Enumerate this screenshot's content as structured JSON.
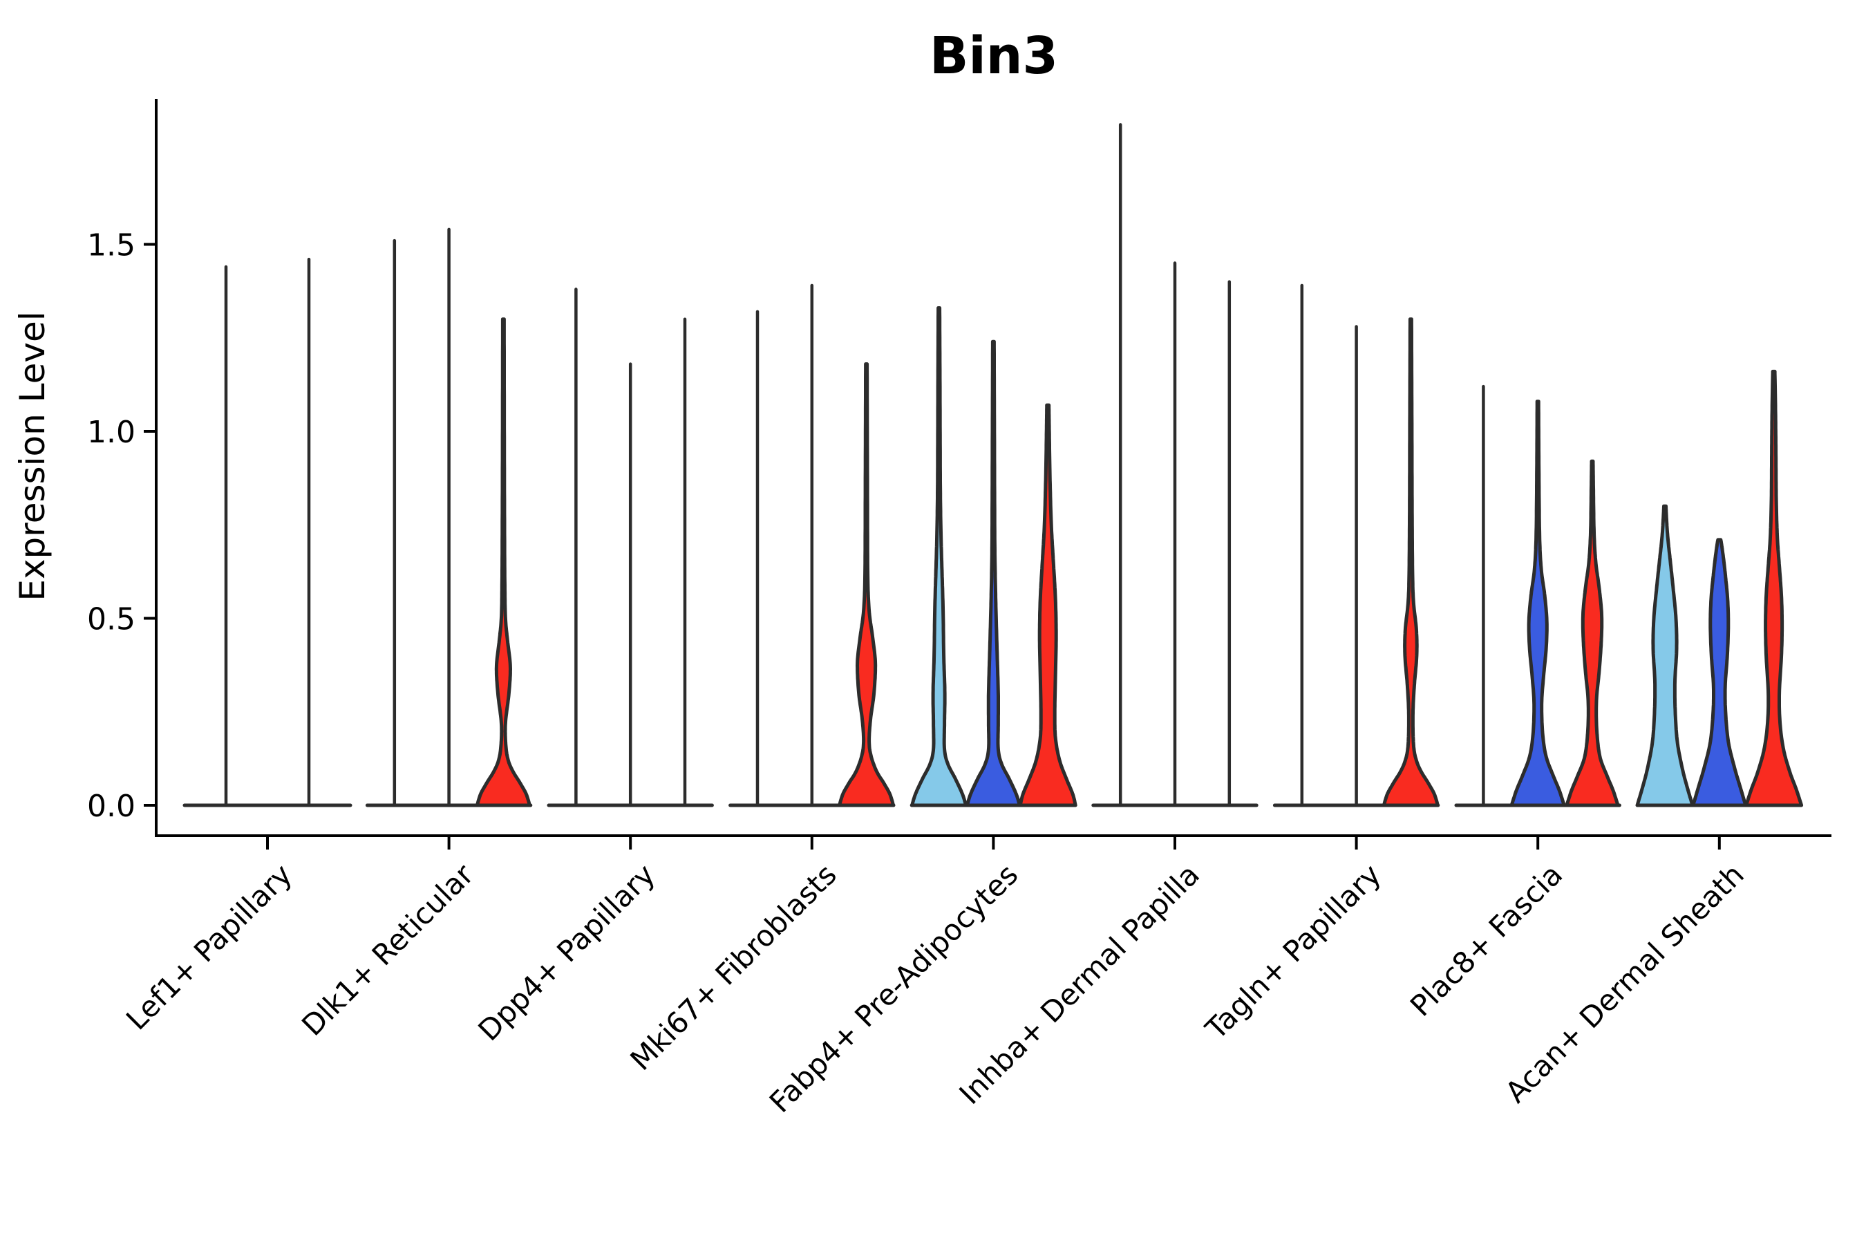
{
  "chart_data": {
    "type": "violin",
    "title": "Bin3",
    "ylabel": "Expression Level",
    "xlabel": "",
    "ylim": [
      -0.09,
      1.89
    ],
    "yticks": [
      0.0,
      0.5,
      1.0,
      1.5
    ],
    "ytick_labels": [
      "0.0",
      "0.5",
      "1.0",
      "1.5"
    ],
    "grid": false,
    "legend_position": "none",
    "palette": {
      "lightblue": "#85C9E9",
      "blue": "#3A5CE0",
      "red": "#F92B20"
    },
    "outline_color": "#2C2C2C",
    "axis_color": "#000000",
    "groups": [
      {
        "label": "Lef1+ Papillary",
        "violins": [
          {
            "color": null,
            "max": 1.44
          },
          {
            "color": null,
            "max": 1.46
          }
        ]
      },
      {
        "label": "Dlk1+ Reticular",
        "violins": [
          {
            "color": null,
            "max": 1.51
          },
          {
            "color": null,
            "max": 1.54
          },
          {
            "color": "red",
            "max": 1.3,
            "profile": [
              [
                0,
                38
              ],
              [
                0.03,
                33
              ],
              [
                0.06,
                24
              ],
              [
                0.09,
                14
              ],
              [
                0.12,
                7
              ],
              [
                0.16,
                3.5
              ],
              [
                0.22,
                3
              ],
              [
                0.3,
                8
              ],
              [
                0.37,
                10
              ],
              [
                0.44,
                6
              ],
              [
                0.5,
                3
              ],
              [
                0.6,
                2
              ],
              [
                0.8,
                1.5
              ],
              [
                1.05,
                1.2
              ],
              [
                1.3,
                1
              ]
            ]
          }
        ]
      },
      {
        "label": "Dpp4+ Papillary",
        "violins": [
          {
            "color": null,
            "max": 1.38
          },
          {
            "color": null,
            "max": 1.18
          },
          {
            "color": null,
            "max": 1.3
          }
        ]
      },
      {
        "label": "Mki67+ Fibroblasts",
        "violins": [
          {
            "color": null,
            "max": 1.32
          },
          {
            "color": null,
            "max": 1.39
          },
          {
            "color": "red",
            "max": 1.18,
            "profile": [
              [
                0,
                39
              ],
              [
                0.03,
                34
              ],
              [
                0.06,
                25
              ],
              [
                0.09,
                15
              ],
              [
                0.13,
                7
              ],
              [
                0.17,
                4
              ],
              [
                0.23,
                6
              ],
              [
                0.3,
                11
              ],
              [
                0.38,
                13
              ],
              [
                0.45,
                9
              ],
              [
                0.52,
                4
              ],
              [
                0.62,
                2
              ],
              [
                0.85,
                1.5
              ],
              [
                1.18,
                1
              ]
            ]
          }
        ]
      },
      {
        "label": "Fabp4+ Pre-Adipocytes",
        "violins": [
          {
            "color": "lightblue",
            "max": 1.33,
            "profile": [
              [
                0,
                39
              ],
              [
                0.03,
                34
              ],
              [
                0.07,
                24
              ],
              [
                0.11,
                13
              ],
              [
                0.15,
                8
              ],
              [
                0.22,
                8
              ],
              [
                0.3,
                8.5
              ],
              [
                0.4,
                7
              ],
              [
                0.52,
                6
              ],
              [
                0.62,
                4.5
              ],
              [
                0.72,
                3
              ],
              [
                0.85,
                2
              ],
              [
                1.1,
                1.5
              ],
              [
                1.33,
                1
              ]
            ]
          },
          {
            "color": "blue",
            "max": 1.24,
            "profile": [
              [
                0,
                38
              ],
              [
                0.03,
                33
              ],
              [
                0.07,
                23
              ],
              [
                0.11,
                12
              ],
              [
                0.15,
                7
              ],
              [
                0.22,
                7
              ],
              [
                0.3,
                7
              ],
              [
                0.4,
                5.5
              ],
              [
                0.5,
                4
              ],
              [
                0.58,
                3
              ],
              [
                0.7,
                2
              ],
              [
                0.95,
                1.5
              ],
              [
                1.24,
                1
              ]
            ]
          },
          {
            "color": "red",
            "max": 1.07,
            "profile": [
              [
                0,
                40
              ],
              [
                0.03,
                36
              ],
              [
                0.07,
                27
              ],
              [
                0.12,
                17
              ],
              [
                0.18,
                11
              ],
              [
                0.25,
                10
              ],
              [
                0.35,
                11
              ],
              [
                0.45,
                12
              ],
              [
                0.55,
                11
              ],
              [
                0.65,
                8
              ],
              [
                0.75,
                5
              ],
              [
                0.88,
                3
              ],
              [
                1.0,
                2
              ],
              [
                1.07,
                1.5
              ]
            ]
          }
        ]
      },
      {
        "label": "Inhba+ Dermal Papilla",
        "violins": [
          {
            "color": null,
            "max": 1.82
          },
          {
            "color": null,
            "max": 1.45
          },
          {
            "color": null,
            "max": 1.4
          }
        ]
      },
      {
        "label": "Tagln+ Papillary",
        "violins": [
          {
            "color": null,
            "max": 1.39
          },
          {
            "color": null,
            "max": 1.28
          },
          {
            "color": "red",
            "max": 1.3,
            "profile": [
              [
                0,
                39
              ],
              [
                0.03,
                34
              ],
              [
                0.06,
                25
              ],
              [
                0.09,
                15
              ],
              [
                0.12,
                8
              ],
              [
                0.16,
                4
              ],
              [
                0.24,
                3
              ],
              [
                0.32,
                5
              ],
              [
                0.4,
                8.5
              ],
              [
                0.47,
                8
              ],
              [
                0.54,
                4
              ],
              [
                0.62,
                2.5
              ],
              [
                0.8,
                1.8
              ],
              [
                1.0,
                1.5
              ],
              [
                1.3,
                1
              ]
            ]
          }
        ]
      },
      {
        "label": "Plac8+ Fascia",
        "violins": [
          {
            "color": null,
            "max": 1.12
          },
          {
            "color": "blue",
            "max": 1.08,
            "profile": [
              [
                0,
                38
              ],
              [
                0.04,
                31
              ],
              [
                0.08,
                22
              ],
              [
                0.13,
                12
              ],
              [
                0.19,
                7
              ],
              [
                0.27,
                5.5
              ],
              [
                0.34,
                8
              ],
              [
                0.42,
                12
              ],
              [
                0.49,
                13
              ],
              [
                0.56,
                10
              ],
              [
                0.63,
                5
              ],
              [
                0.72,
                2.5
              ],
              [
                0.9,
                1.5
              ],
              [
                1.08,
                1
              ]
            ]
          },
          {
            "color": "red",
            "max": 0.92,
            "profile": [
              [
                0,
                37
              ],
              [
                0.04,
                30
              ],
              [
                0.08,
                21
              ],
              [
                0.13,
                11
              ],
              [
                0.2,
                6.5
              ],
              [
                0.28,
                6
              ],
              [
                0.36,
                10
              ],
              [
                0.44,
                13
              ],
              [
                0.51,
                13.5
              ],
              [
                0.58,
                10
              ],
              [
                0.65,
                5
              ],
              [
                0.73,
                2.5
              ],
              [
                0.85,
                1.5
              ],
              [
                0.92,
                1
              ]
            ]
          }
        ]
      },
      {
        "label": "Acan+ Dermal Sheath",
        "violins": [
          {
            "color": "lightblue",
            "max": 0.8,
            "profile": [
              [
                0,
                40
              ],
              [
                0.05,
                32
              ],
              [
                0.1,
                25
              ],
              [
                0.17,
                18
              ],
              [
                0.25,
                15
              ],
              [
                0.33,
                14.5
              ],
              [
                0.42,
                17
              ],
              [
                0.5,
                16
              ],
              [
                0.58,
                12
              ],
              [
                0.65,
                8
              ],
              [
                0.72,
                4
              ],
              [
                0.78,
                2
              ],
              [
                0.8,
                1.5
              ]
            ]
          },
          {
            "color": "blue",
            "max": 0.71,
            "profile": [
              [
                0,
                38
              ],
              [
                0.05,
                30
              ],
              [
                0.1,
                22
              ],
              [
                0.17,
                13
              ],
              [
                0.25,
                9
              ],
              [
                0.32,
                8.5
              ],
              [
                0.4,
                11.5
              ],
              [
                0.48,
                13
              ],
              [
                0.55,
                12
              ],
              [
                0.61,
                9
              ],
              [
                0.66,
                6
              ],
              [
                0.7,
                3
              ],
              [
                0.71,
                2
              ]
            ]
          },
          {
            "color": "red",
            "max": 1.16,
            "profile": [
              [
                0,
                40
              ],
              [
                0.04,
                33
              ],
              [
                0.09,
                23
              ],
              [
                0.15,
                14
              ],
              [
                0.22,
                9
              ],
              [
                0.3,
                8
              ],
              [
                0.4,
                11
              ],
              [
                0.48,
                12
              ],
              [
                0.56,
                11
              ],
              [
                0.64,
                8
              ],
              [
                0.72,
                5
              ],
              [
                0.82,
                3.5
              ],
              [
                0.95,
                3
              ],
              [
                1.05,
                2.5
              ],
              [
                1.16,
                1.5
              ]
            ]
          }
        ]
      }
    ]
  }
}
